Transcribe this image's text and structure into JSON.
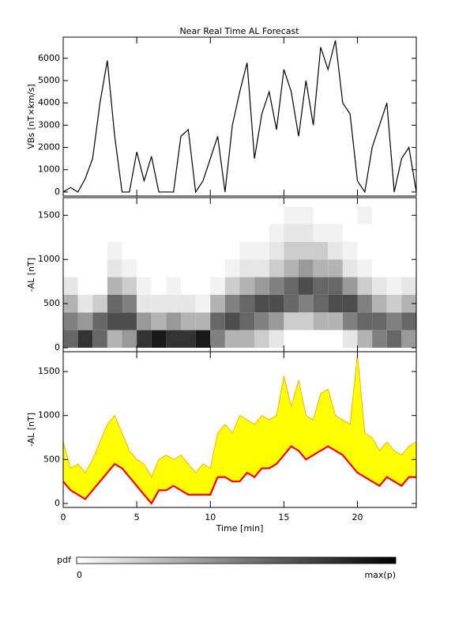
{
  "chart_data": [
    {
      "type": "line",
      "title": "Near Real Time AL Forecast",
      "ylabel": "VBs [nT×km/s]",
      "x": [
        0,
        0.5,
        1,
        1.5,
        2,
        2.5,
        3,
        3.5,
        4,
        4.5,
        5,
        5.5,
        6,
        6.5,
        7,
        7.5,
        8,
        8.5,
        9,
        9.5,
        10,
        10.5,
        11,
        11.5,
        12,
        12.5,
        13,
        13.5,
        14,
        14.5,
        15,
        15.5,
        16,
        16.5,
        17,
        17.5,
        18,
        18.5,
        19,
        19.5,
        20,
        20.5,
        21,
        21.5,
        22,
        22.5,
        23,
        23.5,
        24
      ],
      "values": [
        0,
        200,
        0,
        600,
        1500,
        4000,
        5900,
        2500,
        0,
        0,
        1800,
        500,
        1600,
        0,
        0,
        0,
        2500,
        2800,
        0,
        500,
        1500,
        2500,
        0,
        3000,
        4500,
        5800,
        1500,
        3500,
        4500,
        2800,
        5500,
        4500,
        2500,
        5000,
        3000,
        6500,
        5500,
        6800,
        4000,
        3500,
        500,
        0,
        2000,
        3000,
        4000,
        0,
        1500,
        2000,
        0
      ],
      "color": "#000000",
      "xlim": [
        0,
        24
      ],
      "xticks": [
        0,
        5,
        10,
        15,
        20
      ],
      "xtick_labels": false,
      "ylim": [
        -180,
        6950
      ],
      "yticks": [
        0,
        1000,
        2000,
        3000,
        4000,
        5000,
        6000
      ]
    },
    {
      "type": "heatmap",
      "ylabel": "-AL [nT]",
      "xbins": [
        0,
        1,
        2,
        3,
        4,
        5,
        6,
        7,
        8,
        9,
        10,
        11,
        12,
        13,
        14,
        15,
        16,
        17,
        18,
        19,
        20,
        21,
        22,
        23,
        24
      ],
      "ybins": [
        0,
        200,
        400,
        600,
        800,
        1000,
        1200,
        1400,
        1600
      ],
      "z": [
        [
          0.6,
          0.5,
          0.3,
          0.1,
          0,
          0,
          0,
          0
        ],
        [
          0.8,
          0.4,
          0.1,
          0,
          0,
          0,
          0,
          0
        ],
        [
          0.6,
          0.6,
          0.2,
          0,
          0,
          0,
          0,
          0
        ],
        [
          0.3,
          0.7,
          0.6,
          0.3,
          0.1,
          0.05,
          0,
          0
        ],
        [
          0.4,
          0.7,
          0.5,
          0.2,
          0.05,
          0,
          0,
          0
        ],
        [
          0.8,
          0.4,
          0.1,
          0.05,
          0,
          0,
          0,
          0
        ],
        [
          0.9,
          0.3,
          0.1,
          0,
          0,
          0,
          0,
          0
        ],
        [
          0.8,
          0.4,
          0.1,
          0.05,
          0,
          0,
          0,
          0
        ],
        [
          0.8,
          0.3,
          0.1,
          0,
          0,
          0,
          0,
          0
        ],
        [
          0.9,
          0.3,
          0.05,
          0,
          0,
          0,
          0,
          0
        ],
        [
          0.5,
          0.6,
          0.3,
          0.05,
          0,
          0,
          0,
          0
        ],
        [
          0.3,
          0.7,
          0.5,
          0.2,
          0.05,
          0,
          0,
          0
        ],
        [
          0.3,
          0.6,
          0.6,
          0.3,
          0.1,
          0.05,
          0,
          0
        ],
        [
          0.2,
          0.5,
          0.7,
          0.4,
          0.1,
          0.05,
          0,
          0
        ],
        [
          0.1,
          0.4,
          0.7,
          0.5,
          0.2,
          0.1,
          0.05,
          0
        ],
        [
          0,
          0.2,
          0.6,
          0.6,
          0.3,
          0.2,
          0.1,
          0.05
        ],
        [
          0,
          0.2,
          0.5,
          0.7,
          0.4,
          0.2,
          0.1,
          0.05
        ],
        [
          0,
          0.3,
          0.6,
          0.6,
          0.3,
          0.2,
          0.05,
          0
        ],
        [
          0,
          0.3,
          0.7,
          0.6,
          0.3,
          0.1,
          0.05,
          0
        ],
        [
          0.1,
          0.5,
          0.7,
          0.4,
          0.1,
          0.05,
          0,
          0
        ],
        [
          0.3,
          0.6,
          0.5,
          0.2,
          0.05,
          0,
          0,
          0.05
        ],
        [
          0.5,
          0.6,
          0.3,
          0.1,
          0,
          0,
          0,
          0
        ],
        [
          0.6,
          0.5,
          0.2,
          0.05,
          0,
          0,
          0,
          0
        ],
        [
          0.4,
          0.6,
          0.3,
          0.1,
          0,
          0,
          0,
          0
        ]
      ],
      "colorbar_label": "pdf",
      "colorbar_ticks": [
        0,
        {
          "value": 1,
          "label": "max(p)"
        }
      ],
      "xlim": [
        0,
        24
      ],
      "xticks": [
        0,
        5,
        10,
        15,
        20
      ],
      "xtick_labels": false,
      "ylim": [
        -45,
        1700
      ],
      "yticks": [
        0,
        500,
        1000,
        1500
      ]
    },
    {
      "type": "band",
      "ylabel": "-AL [nT]",
      "xlabel": "Time [min]",
      "x": [
        0,
        0.5,
        1,
        1.5,
        2,
        2.5,
        3,
        3.5,
        4,
        4.5,
        5,
        5.5,
        6,
        6.5,
        7,
        7.5,
        8,
        8.5,
        9,
        9.5,
        10,
        10.5,
        11,
        11.5,
        12,
        12.5,
        13,
        13.5,
        14,
        14.5,
        15,
        15.5,
        16,
        16.5,
        17,
        17.5,
        18,
        18.5,
        19,
        19.5,
        20,
        20.5,
        21,
        21.5,
        22,
        22.5,
        23,
        23.5,
        24
      ],
      "series": [
        {
          "color": "#ff0000",
          "values": [
            250,
            150,
            100,
            50,
            150,
            250,
            350,
            450,
            400,
            300,
            200,
            100,
            0,
            150,
            150,
            200,
            150,
            100,
            100,
            100,
            100,
            300,
            300,
            250,
            250,
            350,
            300,
            400,
            400,
            450,
            550,
            650,
            600,
            500,
            550,
            600,
            650,
            600,
            550,
            450,
            350,
            300,
            250,
            200,
            300,
            250,
            200,
            300,
            300
          ]
        },
        {
          "color": "#ffa500",
          "values": [
            700,
            400,
            450,
            350,
            500,
            700,
            900,
            1000,
            800,
            600,
            500,
            450,
            300,
            500,
            550,
            500,
            550,
            450,
            350,
            450,
            400,
            800,
            900,
            800,
            1000,
            950,
            900,
            1000,
            950,
            1000,
            1450,
            1100,
            1400,
            1000,
            950,
            1250,
            1300,
            1000,
            950,
            900,
            1700,
            800,
            750,
            600,
            700,
            600,
            550,
            650,
            700
          ]
        }
      ],
      "fill": "#ffff00",
      "xlim": [
        0,
        24
      ],
      "xticks": [
        0,
        5,
        10,
        15,
        20
      ],
      "xtick_labels": true,
      "ylim": [
        -45,
        1725
      ],
      "yticks": [
        0,
        500,
        1000,
        1500
      ]
    }
  ]
}
